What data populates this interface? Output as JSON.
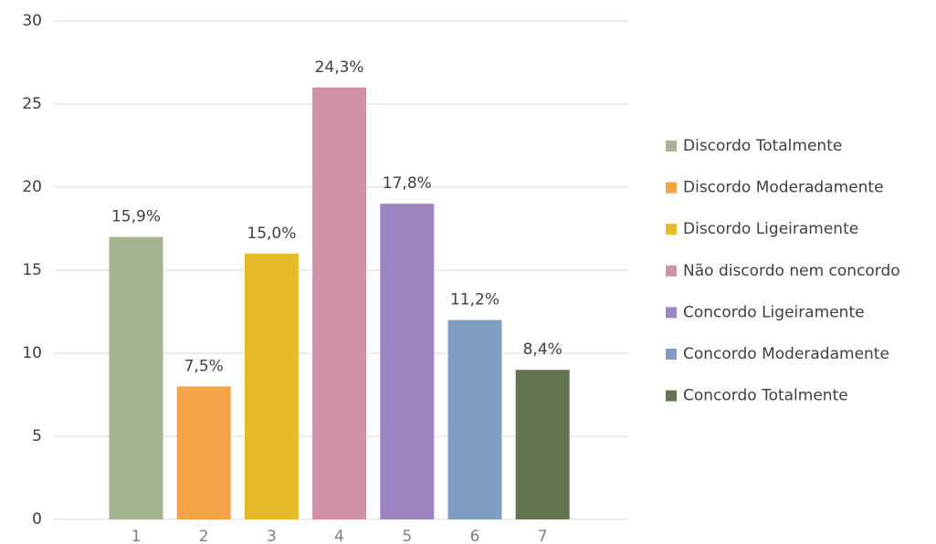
{
  "chart_data": {
    "type": "bar",
    "categories": [
      "1",
      "2",
      "3",
      "4",
      "5",
      "6",
      "7"
    ],
    "values": [
      17,
      8,
      16,
      26,
      19,
      12,
      9
    ],
    "data_labels": [
      "15,9%",
      "7,5%",
      "15,0%",
      "24,3%",
      "17,8%",
      "11,2%",
      "8,4%"
    ],
    "colors": [
      "#a5b592",
      "#f4a446",
      "#e6bb2a",
      "#d092a7",
      "#9c85c0",
      "#809ec2",
      "#637650"
    ],
    "legend": [
      "Discordo Totalmente",
      "Discordo Moderadamente",
      "Discordo Ligeiramente",
      "Não discordo nem concordo",
      "Concordo Ligeiramente",
      "Concordo Moderadamente",
      "Concordo Totalmente"
    ],
    "ylim": [
      0,
      30
    ],
    "yticks": [
      0,
      5,
      10,
      15,
      20,
      25,
      30
    ],
    "grid": true
  }
}
